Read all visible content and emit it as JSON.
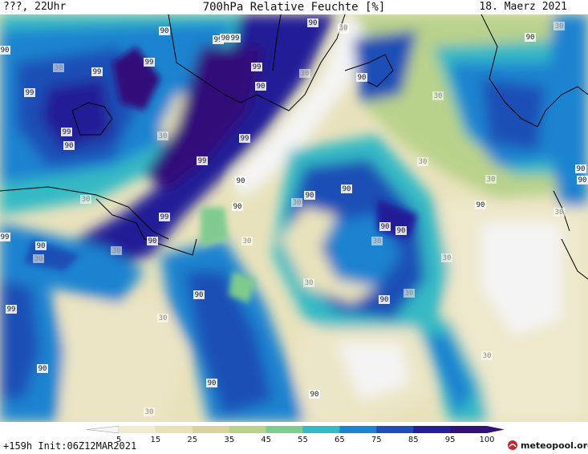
{
  "header": {
    "left": "???, 22Uhr",
    "title": "700hPa Relative Feuchte [%]",
    "date": "18. Maerz 2021"
  },
  "footer": {
    "init": "+159h Init:06Z12MAR2021",
    "logo": "meteopool.org"
  },
  "legend": {
    "ticks": [
      "5",
      "15",
      "25",
      "35",
      "45",
      "55",
      "65",
      "75",
      "85",
      "95",
      "100"
    ],
    "colors": [
      "#f4f4f4",
      "#f0ecd2",
      "#e9e2b9",
      "#d9d49c",
      "#b9d28b",
      "#7fcb8f",
      "#35b9c4",
      "#1b83d0",
      "#1f4fb6",
      "#221f97",
      "#33117a"
    ]
  },
  "map": {
    "labels": [
      {
        "text": "90"
      },
      {
        "text": "99"
      },
      {
        "text": "90"
      },
      {
        "text": "99"
      },
      {
        "text": "90"
      },
      {
        "text": "99"
      },
      {
        "text": "99"
      },
      {
        "text": "99"
      },
      {
        "text": "90"
      },
      {
        "text": "99"
      },
      {
        "text": "99"
      },
      {
        "text": "90"
      },
      {
        "text": "90"
      },
      {
        "text": "99"
      },
      {
        "text": "30"
      },
      {
        "text": "99"
      },
      {
        "text": "90"
      },
      {
        "text": "90"
      },
      {
        "text": "30"
      },
      {
        "text": "30"
      },
      {
        "text": "90"
      },
      {
        "text": "99"
      },
      {
        "text": "30"
      },
      {
        "text": "30"
      },
      {
        "text": "30"
      },
      {
        "text": "90"
      },
      {
        "text": "90"
      },
      {
        "text": "30"
      },
      {
        "text": "30"
      },
      {
        "text": "30"
      },
      {
        "text": "90"
      },
      {
        "text": "90"
      },
      {
        "text": "99"
      },
      {
        "text": "30"
      },
      {
        "text": "90"
      },
      {
        "text": "30"
      },
      {
        "text": "90"
      },
      {
        "text": "90"
      },
      {
        "text": "30"
      },
      {
        "text": "90"
      },
      {
        "text": "30"
      },
      {
        "text": "30"
      },
      {
        "text": "90"
      },
      {
        "text": "30"
      },
      {
        "text": "90"
      },
      {
        "text": "90"
      },
      {
        "text": "30"
      },
      {
        "text": "90"
      },
      {
        "text": "90"
      },
      {
        "text": "30"
      },
      {
        "text": "30"
      },
      {
        "text": "90"
      },
      {
        "text": "30"
      },
      {
        "text": "30"
      },
      {
        "text": "90"
      },
      {
        "text": "99"
      },
      {
        "text": "30"
      },
      {
        "text": "30"
      }
    ]
  }
}
